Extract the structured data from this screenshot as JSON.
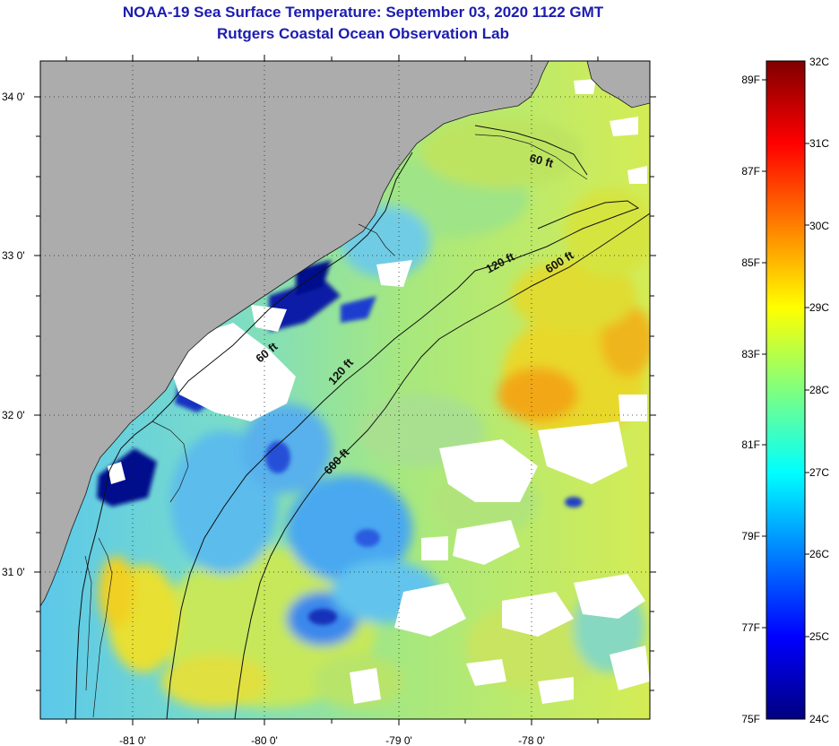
{
  "title_line1": "NOAA-19 Sea Surface Temperature:  September 03, 2020 1122 GMT",
  "title_line2": "Rutgers Coastal Ocean Observation Lab",
  "map": {
    "lat_ticks": [
      "34 0'",
      "33 0'",
      "32 0'",
      "31 0'"
    ],
    "lon_ticks": [
      "-81 0'",
      "-80 0'",
      "-79 0'",
      "-78 0'"
    ],
    "isobaths": {
      "inner": "60 ft",
      "mid": "120 ft",
      "outer": "600 ft"
    }
  },
  "colorbar": {
    "celsius_labels": [
      "32C",
      "31C",
      "30C",
      "29C",
      "28C",
      "27C",
      "26C",
      "25C",
      "24C"
    ],
    "fahrenheit_labels": [
      "89F",
      "87F",
      "85F",
      "83F",
      "81F",
      "79F",
      "77F",
      "75F"
    ],
    "colors": [
      "#00007f",
      "#0000ff",
      "#007fff",
      "#00ffff",
      "#7fff7f",
      "#ffff00",
      "#ff7f00",
      "#ff0000",
      "#7f0000"
    ]
  },
  "colors": {
    "land": "#acacac",
    "title": "#1c1cb0",
    "cloud": "#ffffff",
    "cold_patch": "#000a8c",
    "warm_patch": "#f2a818"
  }
}
